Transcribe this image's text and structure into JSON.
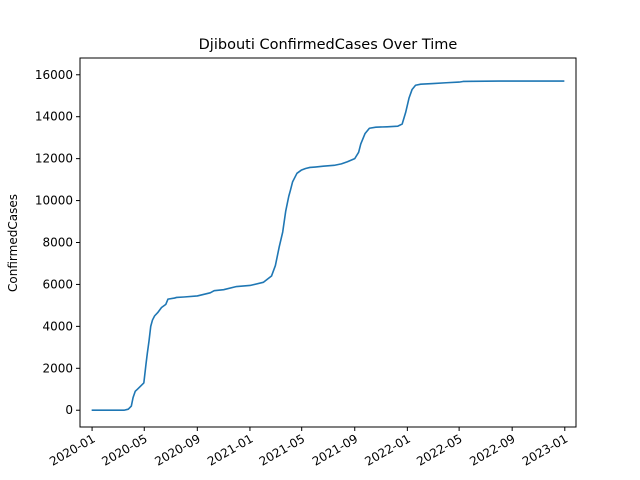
{
  "chart_data": {
    "type": "line",
    "title": "Djibouti  ConfirmedCases Over Time",
    "xlabel": "",
    "ylabel": "ConfirmedCases",
    "ylim": [
      -800,
      16800
    ],
    "xlim": [
      "2019-12-04",
      "2023-01-27"
    ],
    "x_ticks": [
      "2020-01",
      "2020-05",
      "2020-09",
      "2021-01",
      "2021-05",
      "2021-09",
      "2022-01",
      "2022-05",
      "2022-09",
      "2023-01"
    ],
    "y_ticks": [
      0,
      2000,
      4000,
      6000,
      8000,
      10000,
      12000,
      14000,
      16000
    ],
    "grid": false,
    "line_color": "#1f77b4",
    "series": [
      {
        "x": [
          "2019-12-31",
          "2020-03-15",
          "2020-03-25",
          "2020-04-01",
          "2020-04-05",
          "2020-04-10",
          "2020-04-15",
          "2020-04-20",
          "2020-04-30",
          "2020-05-05",
          "2020-05-08",
          "2020-05-12",
          "2020-05-16",
          "2020-05-20",
          "2020-05-25",
          "2020-06-01",
          "2020-06-10",
          "2020-06-20",
          "2020-06-25",
          "2020-07-10",
          "2020-07-15",
          "2020-08-01",
          "2020-09-01",
          "2020-10-01",
          "2020-10-10",
          "2020-11-01",
          "2020-12-01",
          "2021-01-01",
          "2021-02-01",
          "2021-02-20",
          "2021-03-01",
          "2021-03-10",
          "2021-03-18",
          "2021-03-25",
          "2021-04-01",
          "2021-04-05",
          "2021-04-10",
          "2021-04-20",
          "2021-04-30",
          "2021-05-10",
          "2021-05-20",
          "2021-06-01",
          "2021-06-20",
          "2021-07-15",
          "2021-08-01",
          "2021-08-15",
          "2021-09-01",
          "2021-09-10",
          "2021-09-15",
          "2021-09-25",
          "2021-10-05",
          "2021-10-20",
          "2021-11-15",
          "2021-12-10",
          "2021-12-20",
          "2021-12-28",
          "2022-01-05",
          "2022-01-12",
          "2022-01-20",
          "2022-02-01",
          "2022-03-01",
          "2022-04-01",
          "2022-05-01",
          "2022-05-10",
          "2022-06-01",
          "2022-08-01",
          "2022-10-01",
          "2022-12-31"
        ],
        "y": [
          0,
          0,
          50,
          200,
          600,
          900,
          1000,
          1100,
          1300,
          2200,
          2700,
          3300,
          4000,
          4300,
          4500,
          4650,
          4900,
          5050,
          5300,
          5350,
          5380,
          5400,
          5450,
          5600,
          5700,
          5750,
          5900,
          5950,
          6100,
          6400,
          6900,
          7800,
          8500,
          9500,
          10200,
          10500,
          10900,
          11300,
          11450,
          11530,
          11580,
          11600,
          11640,
          11680,
          11750,
          11850,
          12000,
          12300,
          12700,
          13200,
          13450,
          13500,
          13520,
          13550,
          13650,
          14200,
          14900,
          15300,
          15500,
          15550,
          15580,
          15620,
          15650,
          15680,
          15690,
          15700,
          15700,
          15700
        ]
      }
    ]
  }
}
